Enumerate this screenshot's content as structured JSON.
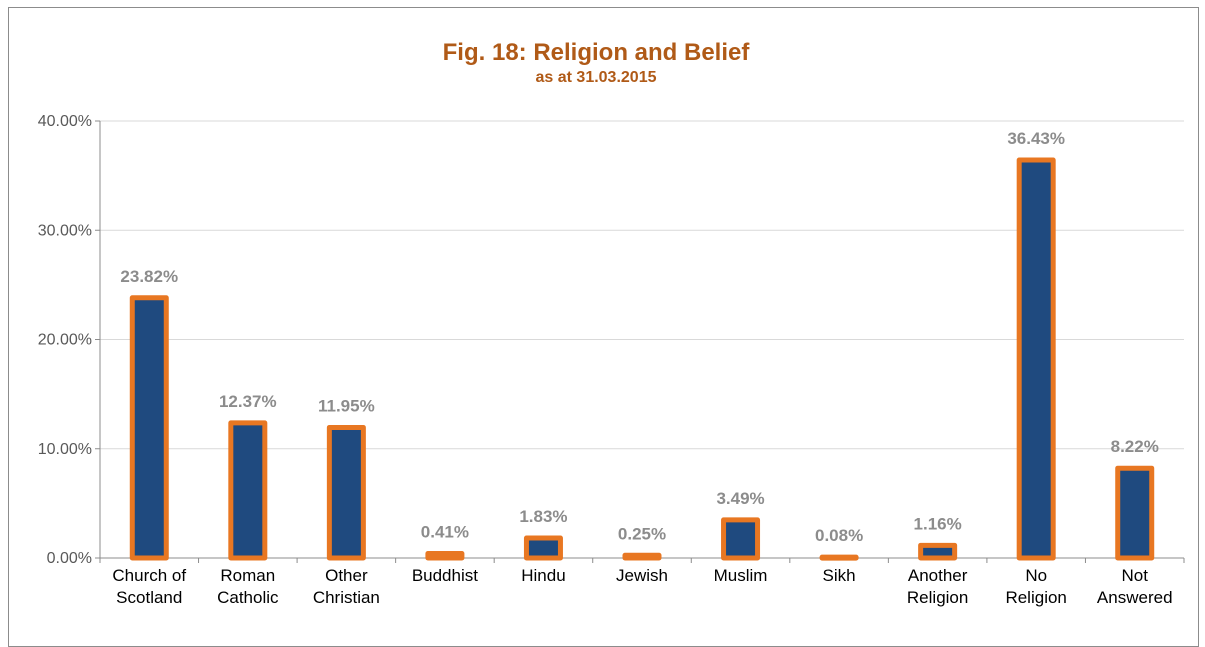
{
  "colors": {
    "bar_fill": "#1f4a7f",
    "bar_border": "#e87722",
    "title": "#b05a17",
    "data_label": "#8c8c8c",
    "gridline": "#d9d9d9"
  },
  "chart_data": {
    "type": "bar",
    "title": "Fig. 18: Religion and Belief",
    "subtitle": "as at 31.03.2015",
    "xlabel": "",
    "ylabel": "",
    "categories": [
      [
        "Church of",
        "Scotland"
      ],
      [
        "Roman",
        "Catholic"
      ],
      [
        "Other",
        "Christian"
      ],
      [
        "Buddhist"
      ],
      [
        "Hindu"
      ],
      [
        "Jewish"
      ],
      [
        "Muslim"
      ],
      [
        "Sikh"
      ],
      [
        "Another",
        "Religion"
      ],
      [
        "No",
        "Religion"
      ],
      [
        "Not",
        "Answered"
      ]
    ],
    "values": [
      23.82,
      12.37,
      11.95,
      0.41,
      1.83,
      0.25,
      3.49,
      0.08,
      1.16,
      36.43,
      8.22
    ],
    "data_labels": [
      "23.82%",
      "12.37%",
      "11.95%",
      "0.41%",
      "1.83%",
      "0.25%",
      "3.49%",
      "0.08%",
      "1.16%",
      "36.43%",
      "8.22%"
    ],
    "ylim": [
      0,
      40
    ],
    "yticks": [
      0,
      10,
      20,
      30,
      40
    ],
    "ytick_labels": [
      "0.00%",
      "10.00%",
      "20.00%",
      "30.00%",
      "40.00%"
    ],
    "grid": true,
    "legend": "none"
  }
}
